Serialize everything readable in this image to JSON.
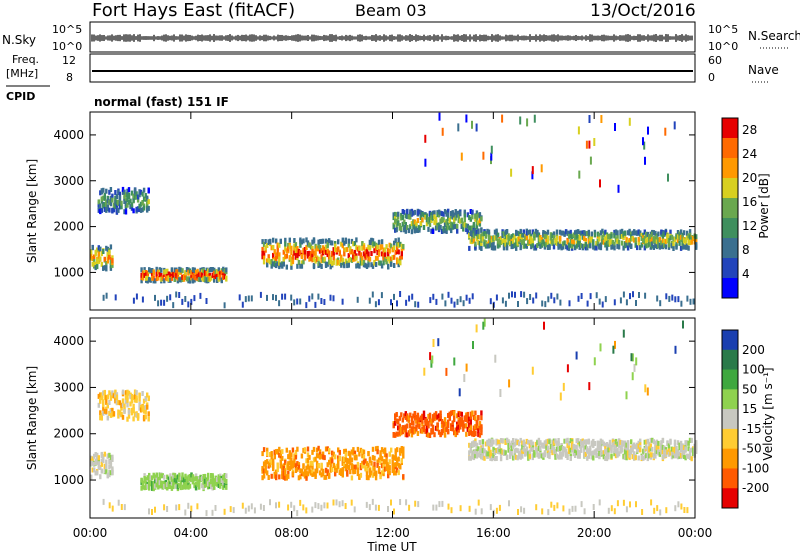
{
  "header": {
    "title": "Fort Hays East (fitACF)",
    "beam": "Beam 03",
    "date": "13/Oct/2016"
  },
  "status_panels": {
    "nsky_label": "N.Sky",
    "nsky_ticks": [
      "10^5",
      "10^0"
    ],
    "nsearch_label": "N.Search",
    "nsearch_ticks": [
      "10^5",
      "10^0"
    ],
    "freq_label": "Freq.",
    "freq_unit": "[MHz]",
    "freq_ticks": [
      "12",
      "8"
    ],
    "nave_label": "Nave",
    "nave_ticks": [
      "60",
      "0"
    ],
    "cpid_label": "CPID",
    "cpid_value": "normal (fast) 151 IF"
  },
  "chart_data": [
    {
      "type": "heatmap",
      "panel": "power",
      "ylabel": "Slant Range [km]",
      "xlabel": "",
      "x_ticks": [
        "00:00",
        "04:00",
        "08:00",
        "12:00",
        "16:00",
        "20:00",
        "00:00"
      ],
      "xlim_hours": [
        0,
        24
      ],
      "ylim_km": [
        180,
        4500
      ],
      "y_ticks": [
        1000,
        2000,
        3000,
        4000
      ],
      "colorbar": {
        "label": "Power [dB]",
        "ticks": [
          4,
          8,
          12,
          16,
          20,
          24,
          28
        ],
        "range": [
          0,
          30
        ],
        "colors": [
          "#0000ff",
          "#2244bb",
          "#3a6f8f",
          "#3f8f5e",
          "#6aa84f",
          "#d8d020",
          "#ff9900",
          "#ff6a00",
          "#e60000"
        ]
      },
      "regions": [
        {
          "start_h": 0.0,
          "end_h": 0.9,
          "center_km": 1300,
          "width_km": 500,
          "level": 0.55
        },
        {
          "start_h": 0.3,
          "end_h": 2.3,
          "center_km": 2550,
          "width_km": 500,
          "level": 0.3
        },
        {
          "start_h": 2.0,
          "end_h": 5.4,
          "center_km": 930,
          "width_km": 260,
          "level": 0.72
        },
        {
          "start_h": 6.8,
          "end_h": 12.4,
          "center_km": 1400,
          "width_km": 600,
          "level": 0.65
        },
        {
          "start_h": 12.0,
          "end_h": 15.5,
          "center_km": 2100,
          "width_km": 450,
          "level": 0.4
        },
        {
          "start_h": 15.0,
          "end_h": 24.0,
          "center_km": 1700,
          "width_km": 380,
          "level": 0.45
        }
      ]
    },
    {
      "type": "heatmap",
      "panel": "velocity",
      "ylabel": "Slant Range [km]",
      "xlabel": "Time UT",
      "x_ticks": [
        "00:00",
        "04:00",
        "08:00",
        "12:00",
        "16:00",
        "20:00",
        "00:00"
      ],
      "xlim_hours": [
        0,
        24
      ],
      "ylim_km": [
        180,
        4500
      ],
      "y_ticks": [
        1000,
        2000,
        3000,
        4000
      ],
      "colorbar": {
        "label": "Velocity [m s⁻¹]",
        "ticks": [
          200,
          100,
          50,
          15,
          -15,
          -50,
          -100,
          -200
        ],
        "colors": [
          "#1a3fb0",
          "#2a7a4a",
          "#3fa83f",
          "#8fd24f",
          "#c8c8c0",
          "#ffcc33",
          "#ff9900",
          "#ff5a00",
          "#e60000"
        ]
      },
      "regions": [
        {
          "start_h": 0.0,
          "end_h": 0.9,
          "center_km": 1300,
          "width_km": 500,
          "vel": "15"
        },
        {
          "start_h": 0.3,
          "end_h": 2.3,
          "center_km": 2600,
          "width_km": 600,
          "vel": "-15"
        },
        {
          "start_h": 2.0,
          "end_h": 5.4,
          "center_km": 950,
          "width_km": 300,
          "vel": "50"
        },
        {
          "start_h": 6.8,
          "end_h": 12.4,
          "center_km": 1350,
          "width_km": 650,
          "vel": "-50"
        },
        {
          "start_h": 12.0,
          "end_h": 15.5,
          "center_km": 2200,
          "width_km": 500,
          "vel": "-100"
        },
        {
          "start_h": 15.0,
          "end_h": 24.0,
          "center_km": 1650,
          "width_km": 400,
          "vel": "15"
        }
      ]
    }
  ]
}
